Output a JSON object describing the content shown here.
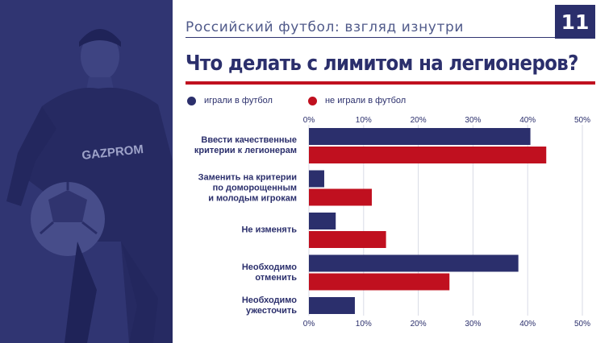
{
  "header": {
    "title": "Российский футбол: взгляд изнутри",
    "page_number": "11"
  },
  "photo": {
    "shirt_text": "GAZPROM"
  },
  "colors": {
    "navy": "#2b2f6c",
    "red": "#c0101f",
    "panel": "#2c306e"
  },
  "chart_data": {
    "type": "bar",
    "orientation": "horizontal",
    "title": "Что делать с лимитом на легионеров?",
    "categories": [
      "Ввести качественные\nкритерии к легионерам",
      "Заменить на критерии\nпо доморощенным\nи молодым игрокам",
      "Не изменять",
      "Необходимо\nотменить",
      "Необходимо\nужесточить"
    ],
    "series": [
      {
        "name": "играли в футбол",
        "color": "#2b2f6c",
        "values": [
          40.5,
          2.8,
          4.9,
          38.3,
          8.4
        ]
      },
      {
        "name": "не играли в футбол",
        "color": "#c0101f",
        "values": [
          43.4,
          11.5,
          14.1,
          25.7,
          null
        ]
      }
    ],
    "xlim": [
      0,
      50
    ],
    "ticks": [
      "0%",
      "10%",
      "20%",
      "30%",
      "40%",
      "50%"
    ],
    "tick_values": [
      0,
      10,
      20,
      30,
      40,
      50
    ],
    "grid": true,
    "legend": "top-left"
  }
}
